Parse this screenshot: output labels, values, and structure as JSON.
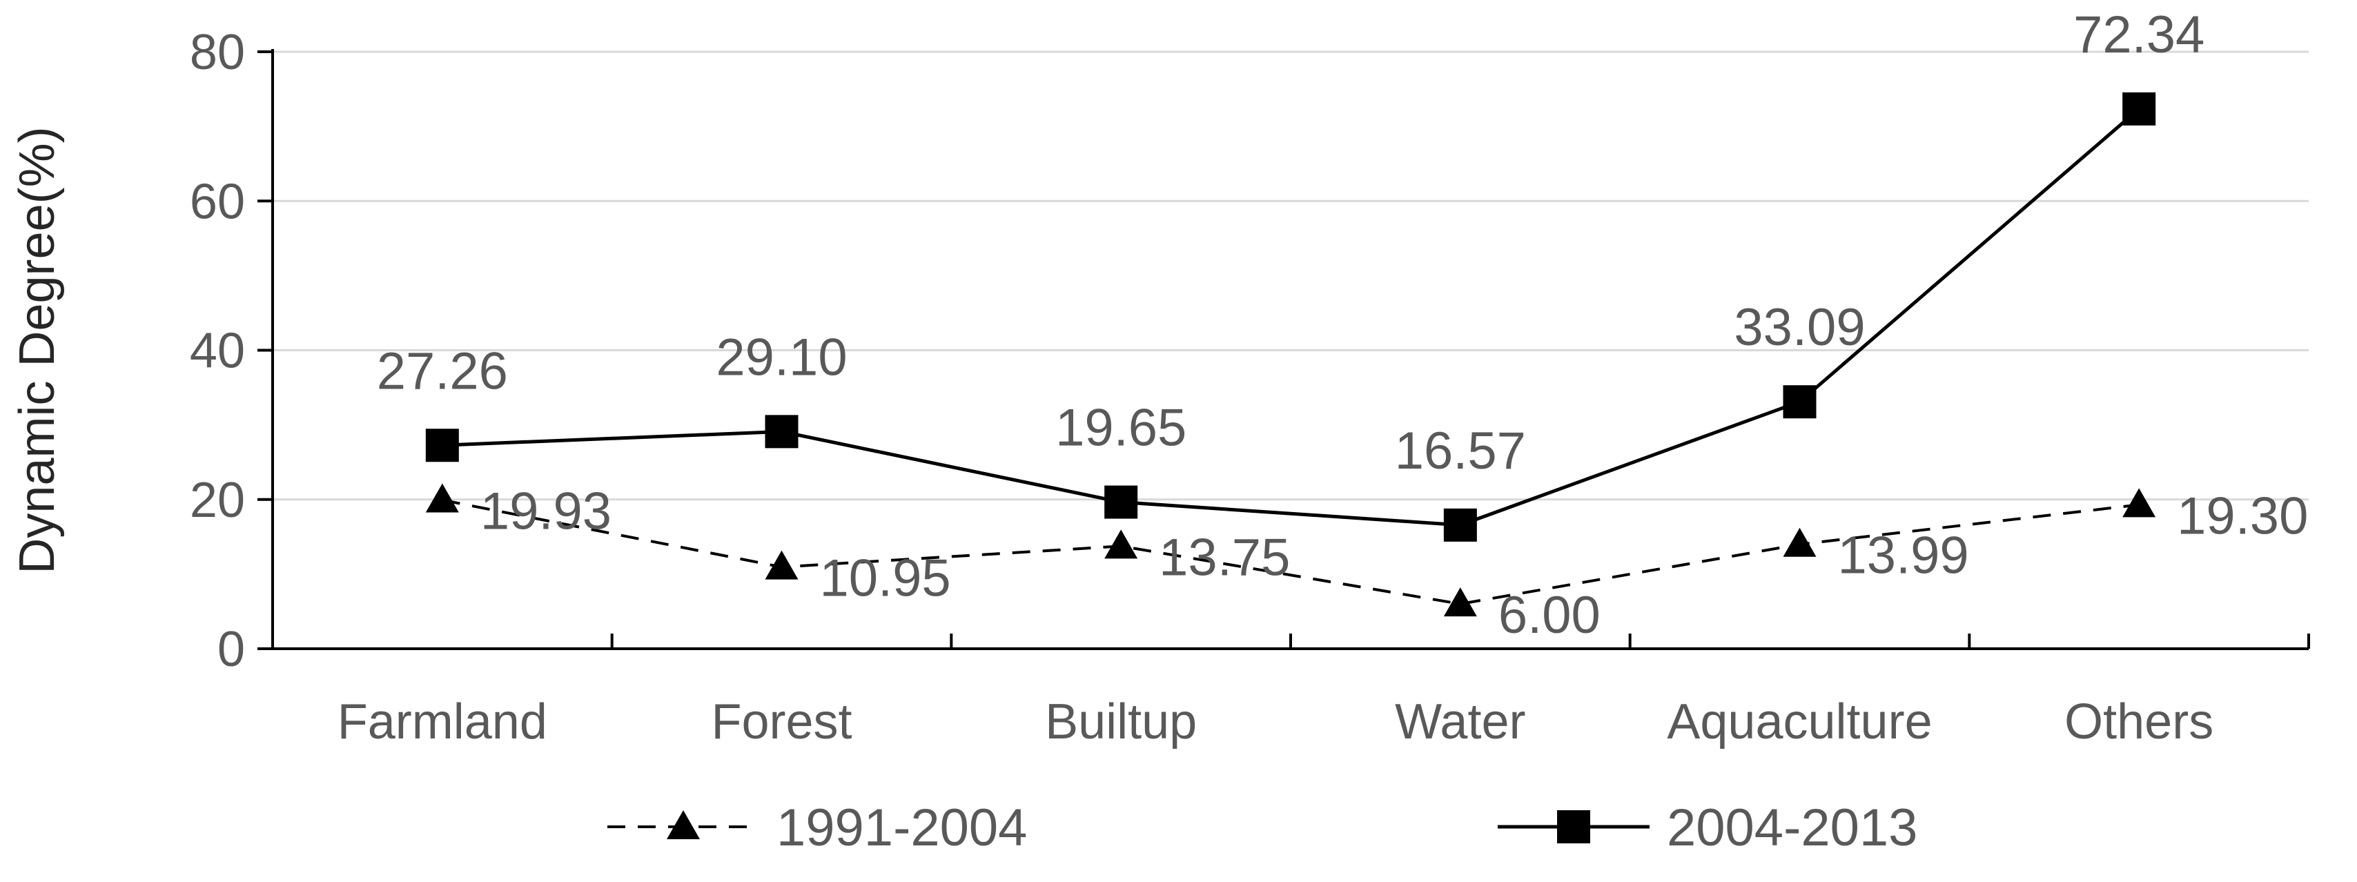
{
  "chart_data": {
    "type": "line",
    "title": "",
    "xlabel": "",
    "ylabel": "Dynamic Degree(%)",
    "ylim": [
      0,
      80
    ],
    "yticks": [
      0,
      20,
      40,
      60,
      80
    ],
    "grid": true,
    "legend_position": "bottom",
    "categories": [
      "Farmland",
      "Forest",
      "Builtup",
      "Water",
      "Aquaculture",
      "Others"
    ],
    "series": [
      {
        "name": "1991-2004",
        "values": [
          19.93,
          10.95,
          13.75,
          6.0,
          13.99,
          19.3
        ],
        "labels": [
          "19.93",
          "10.95",
          "13.75",
          "6.00",
          "13.99",
          "19.30"
        ],
        "line_style": "dashed",
        "marker": "triangle",
        "color": "#000000"
      },
      {
        "name": "2004-2013",
        "values": [
          27.26,
          29.1,
          19.65,
          16.57,
          33.09,
          72.34
        ],
        "labels": [
          "27.26",
          "29.10",
          "19.65",
          "16.57",
          "33.09",
          "72.34"
        ],
        "line_style": "solid",
        "marker": "square",
        "color": "#000000"
      }
    ]
  }
}
